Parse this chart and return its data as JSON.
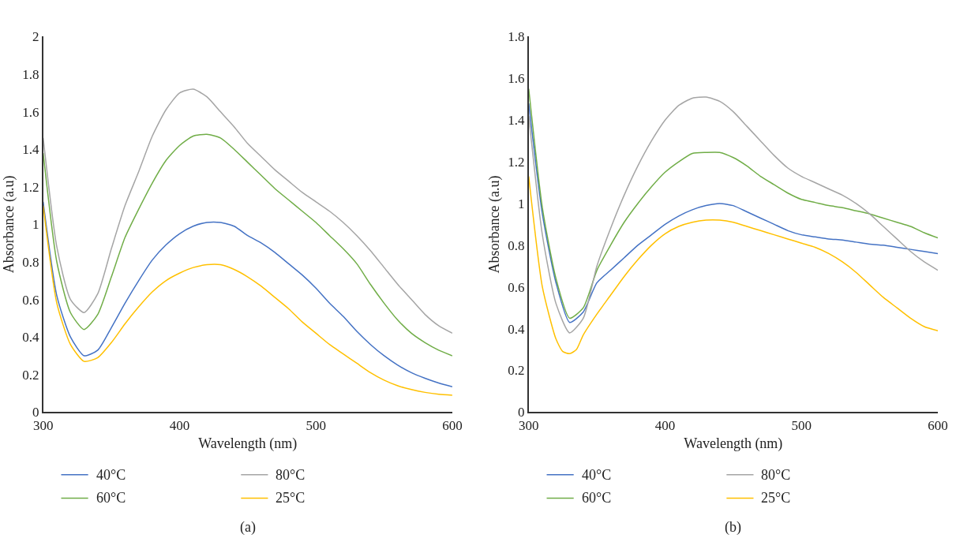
{
  "chart_data": [
    {
      "type": "line",
      "xlabel": "Wavelength (nm)",
      "ylabel": "Absorbance (a.u)",
      "annotations": [
        "(a)"
      ],
      "xlim": [
        300,
        600
      ],
      "xticks": [
        300,
        400,
        500,
        600
      ],
      "ylim": [
        0,
        2
      ],
      "yticks": [
        0,
        0.2,
        0.4,
        0.6,
        0.8,
        1,
        1.2,
        1.4,
        1.6,
        1.8,
        2
      ],
      "legend": "bottom",
      "marker": "none",
      "line_style": "solid",
      "x": [
        300,
        310,
        320,
        330,
        340,
        350,
        360,
        370,
        380,
        390,
        400,
        410,
        420,
        430,
        440,
        450,
        460,
        470,
        480,
        490,
        500,
        510,
        520,
        530,
        540,
        550,
        560,
        570,
        580,
        590,
        600
      ],
      "series": [
        {
          "name": "40°C",
          "color": "#4472c4",
          "values": [
            1.12,
            0.62,
            0.4,
            0.3,
            0.33,
            0.45,
            0.58,
            0.7,
            0.81,
            0.89,
            0.95,
            0.99,
            1.01,
            1.01,
            0.99,
            0.94,
            0.9,
            0.85,
            0.79,
            0.73,
            0.66,
            0.58,
            0.51,
            0.43,
            0.36,
            0.3,
            0.25,
            0.21,
            0.18,
            0.155,
            0.135
          ]
        },
        {
          "name": "60°C",
          "color": "#70ad47",
          "values": [
            1.38,
            0.8,
            0.53,
            0.44,
            0.52,
            0.72,
            0.93,
            1.08,
            1.22,
            1.34,
            1.42,
            1.47,
            1.48,
            1.46,
            1.4,
            1.33,
            1.26,
            1.19,
            1.13,
            1.07,
            1.01,
            0.94,
            0.87,
            0.79,
            0.68,
            0.58,
            0.49,
            0.42,
            0.37,
            0.33,
            0.3
          ]
        },
        {
          "name": "80°C",
          "color": "#a5a5a5",
          "values": [
            1.46,
            0.88,
            0.6,
            0.53,
            0.63,
            0.87,
            1.1,
            1.28,
            1.47,
            1.61,
            1.7,
            1.72,
            1.68,
            1.6,
            1.52,
            1.43,
            1.36,
            1.29,
            1.23,
            1.17,
            1.12,
            1.07,
            1.01,
            0.94,
            0.86,
            0.77,
            0.68,
            0.6,
            0.52,
            0.46,
            0.42
          ]
        },
        {
          "name": "25°C",
          "color": "#ffc000",
          "values": [
            1.1,
            0.58,
            0.36,
            0.27,
            0.29,
            0.37,
            0.47,
            0.56,
            0.64,
            0.7,
            0.74,
            0.77,
            0.785,
            0.785,
            0.76,
            0.72,
            0.67,
            0.61,
            0.55,
            0.48,
            0.42,
            0.36,
            0.31,
            0.26,
            0.21,
            0.17,
            0.14,
            0.12,
            0.105,
            0.095,
            0.09
          ]
        }
      ]
    },
    {
      "type": "line",
      "xlabel": "Wavelength (nm)",
      "ylabel": "Absorbance (a.u)",
      "annotations": [
        "(b)"
      ],
      "xlim": [
        300,
        600
      ],
      "xticks": [
        300,
        400,
        500,
        600
      ],
      "ylim": [
        0,
        1.8
      ],
      "yticks": [
        0,
        0.2,
        0.4,
        0.6,
        0.8,
        1,
        1.2,
        1.4,
        1.6,
        1.8
      ],
      "legend": "bottom",
      "marker": "none",
      "line_style": "solid",
      "x": [
        300,
        310,
        320,
        330,
        340,
        350,
        360,
        370,
        380,
        390,
        400,
        410,
        420,
        430,
        440,
        450,
        460,
        470,
        480,
        490,
        500,
        510,
        520,
        530,
        540,
        550,
        560,
        570,
        580,
        590,
        600
      ],
      "series": [
        {
          "name": "40°C",
          "color": "#4472c4",
          "values": [
            1.48,
            0.95,
            0.62,
            0.43,
            0.48,
            0.62,
            0.68,
            0.74,
            0.8,
            0.85,
            0.9,
            0.94,
            0.97,
            0.99,
            1.0,
            0.99,
            0.96,
            0.93,
            0.9,
            0.87,
            0.85,
            0.84,
            0.83,
            0.825,
            0.815,
            0.805,
            0.8,
            0.79,
            0.78,
            0.77,
            0.76
          ]
        },
        {
          "name": "60°C",
          "color": "#70ad47",
          "values": [
            1.55,
            0.98,
            0.64,
            0.45,
            0.5,
            0.68,
            0.8,
            0.91,
            1.0,
            1.08,
            1.15,
            1.2,
            1.24,
            1.245,
            1.245,
            1.22,
            1.18,
            1.13,
            1.09,
            1.05,
            1.02,
            1.005,
            0.99,
            0.98,
            0.965,
            0.95,
            0.93,
            0.91,
            0.89,
            0.86,
            0.835
          ]
        },
        {
          "name": "80°C",
          "color": "#a5a5a5",
          "values": [
            1.42,
            0.85,
            0.52,
            0.38,
            0.45,
            0.7,
            0.88,
            1.04,
            1.18,
            1.3,
            1.4,
            1.47,
            1.505,
            1.51,
            1.49,
            1.44,
            1.37,
            1.3,
            1.23,
            1.17,
            1.13,
            1.1,
            1.07,
            1.04,
            1.0,
            0.95,
            0.89,
            0.83,
            0.77,
            0.72,
            0.68
          ]
        },
        {
          "name": "25°C",
          "color": "#ffc000",
          "x": [
            300,
            310,
            320,
            325,
            330,
            335,
            340,
            350,
            360,
            370,
            380,
            390,
            400,
            410,
            420,
            430,
            440,
            450,
            460,
            470,
            480,
            490,
            500,
            510,
            520,
            530,
            540,
            550,
            560,
            570,
            580,
            590,
            600
          ],
          "values": [
            1.13,
            0.6,
            0.35,
            0.29,
            0.28,
            0.3,
            0.37,
            0.47,
            0.56,
            0.65,
            0.73,
            0.8,
            0.855,
            0.89,
            0.91,
            0.92,
            0.92,
            0.91,
            0.89,
            0.87,
            0.85,
            0.83,
            0.81,
            0.79,
            0.76,
            0.72,
            0.67,
            0.61,
            0.55,
            0.5,
            0.45,
            0.41,
            0.39
          ]
        }
      ]
    }
  ]
}
